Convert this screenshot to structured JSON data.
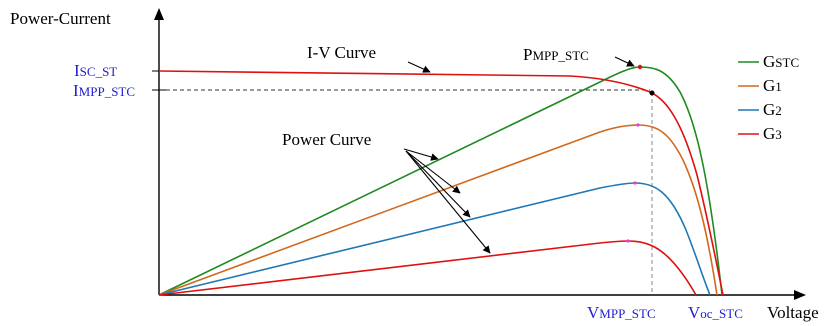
{
  "axes": {
    "y_label": "Power-Current",
    "x_label": "Voltage"
  },
  "y_ticks": {
    "isc": {
      "main": "I",
      "sub": "SC_ST"
    },
    "impp": {
      "main": "I",
      "sub": "MPP_STC"
    }
  },
  "x_ticks": {
    "vmpp": {
      "main": "V",
      "sub": "MPP_STC"
    },
    "voc": {
      "main": "V",
      "sub": "oc_STC"
    }
  },
  "annotations": {
    "iv_curve": "I-V Curve",
    "power_curve": "Power Curve",
    "pmpp": {
      "main": "P",
      "sub": "MPP_STC"
    }
  },
  "legend": [
    {
      "main": "G",
      "sub": "STC",
      "color": "#1f8a1f"
    },
    {
      "main": "G",
      "sub": "1",
      "color": "#d2691e"
    },
    {
      "main": "G",
      "sub": "2",
      "color": "#1f77b4"
    },
    {
      "main": "G",
      "sub": "3",
      "color": "#e01010"
    }
  ],
  "colors": {
    "axis": "#000000",
    "tick_label": "#2020d0",
    "iv_curve": "#e01010",
    "mpp_marker_magenta": "#e040e0"
  }
}
